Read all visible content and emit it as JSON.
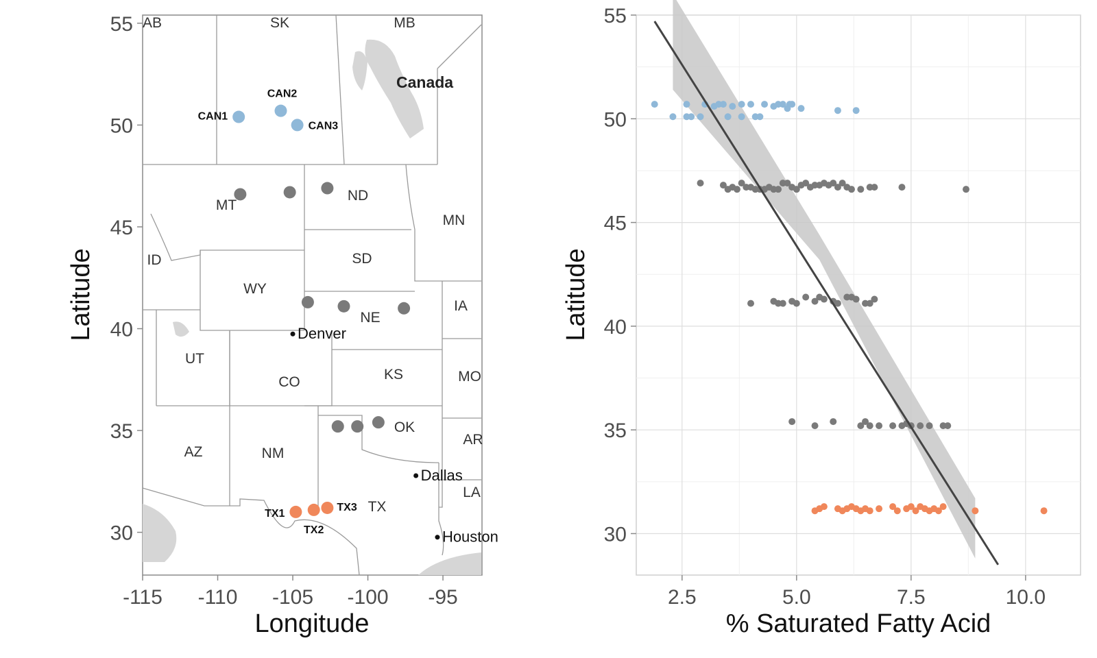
{
  "colors": {
    "canada": "#8fb8d8",
    "usa": "#7a7a7a",
    "texas": "#f0875a",
    "fit_line": "#444444",
    "confidence_band": "#c8c8c8",
    "water": "#d6d6d6",
    "border": "#9a9a9a"
  },
  "map": {
    "x_axis_label": "Longitude",
    "y_axis_label": "Latitude",
    "x_ticks": [
      "-115",
      "-110",
      "-105",
      "-100",
      "-95"
    ],
    "y_ticks": [
      "55",
      "50",
      "45",
      "40",
      "35",
      "30"
    ],
    "country_label": "Canada",
    "state_labels": [
      "AB",
      "SK",
      "MB",
      "MT",
      "ND",
      "MN",
      "ID",
      "SD",
      "WY",
      "IA",
      "NE",
      "UT",
      "KS",
      "MO",
      "CO",
      "OK",
      "AZ",
      "NM",
      "AR",
      "LA",
      "TX"
    ],
    "cities": [
      "Denver",
      "Dallas",
      "Houston"
    ],
    "sites": [
      {
        "label": "CAN1",
        "lon": -108.6,
        "lat": 50.4,
        "group": "canada"
      },
      {
        "label": "CAN2",
        "lon": -105.8,
        "lat": 50.7,
        "group": "canada"
      },
      {
        "label": "CAN3",
        "lon": -104.7,
        "lat": 50.0,
        "group": "canada"
      },
      {
        "label": "",
        "lon": -108.5,
        "lat": 46.6,
        "group": "usa"
      },
      {
        "label": "",
        "lon": -105.2,
        "lat": 46.7,
        "group": "usa"
      },
      {
        "label": "",
        "lon": -102.7,
        "lat": 46.9,
        "group": "usa"
      },
      {
        "label": "",
        "lon": -104.0,
        "lat": 41.3,
        "group": "usa"
      },
      {
        "label": "",
        "lon": -101.6,
        "lat": 41.1,
        "group": "usa"
      },
      {
        "label": "",
        "lon": -97.6,
        "lat": 41.0,
        "group": "usa"
      },
      {
        "label": "",
        "lon": -102.0,
        "lat": 35.2,
        "group": "usa"
      },
      {
        "label": "",
        "lon": -100.7,
        "lat": 35.2,
        "group": "usa"
      },
      {
        "label": "",
        "lon": -99.3,
        "lat": 35.4,
        "group": "usa"
      },
      {
        "label": "TX1",
        "lon": -104.8,
        "lat": 31.0,
        "group": "texas"
      },
      {
        "label": "TX2",
        "lon": -103.6,
        "lat": 31.1,
        "group": "texas"
      },
      {
        "label": "TX3",
        "lon": -102.7,
        "lat": 31.2,
        "group": "texas"
      }
    ]
  },
  "chart_data": {
    "type": "scatter",
    "xlabel": "% Saturated Fatty Acid",
    "ylabel": "Latitude",
    "xlim": [
      1.5,
      11.2
    ],
    "ylim": [
      28,
      55
    ],
    "x_ticks": [
      "2.5",
      "5.0",
      "7.5",
      "10.0"
    ],
    "y_ticks": [
      "55",
      "50",
      "45",
      "40",
      "35",
      "30"
    ],
    "grid": true,
    "series": [
      {
        "group": "canada",
        "points": [
          [
            1.9,
            50.7
          ],
          [
            2.3,
            50.1
          ],
          [
            2.6,
            50.7
          ],
          [
            2.6,
            50.1
          ],
          [
            2.7,
            50.1
          ],
          [
            2.9,
            50.1
          ],
          [
            3.0,
            50.7
          ],
          [
            3.2,
            50.6
          ],
          [
            3.3,
            50.7
          ],
          [
            3.4,
            50.7
          ],
          [
            3.5,
            50.1
          ],
          [
            3.6,
            50.6
          ],
          [
            3.8,
            50.7
          ],
          [
            3.8,
            50.1
          ],
          [
            4.0,
            50.7
          ],
          [
            4.1,
            50.1
          ],
          [
            4.2,
            50.1
          ],
          [
            4.3,
            50.7
          ],
          [
            4.5,
            50.6
          ],
          [
            4.6,
            50.7
          ],
          [
            4.7,
            50.7
          ],
          [
            4.8,
            50.5
          ],
          [
            4.85,
            50.7
          ],
          [
            4.9,
            50.7
          ],
          [
            5.1,
            50.5
          ],
          [
            5.9,
            50.4
          ],
          [
            6.3,
            50.4
          ]
        ]
      },
      {
        "group": "usa",
        "points": [
          [
            2.9,
            46.9
          ],
          [
            3.4,
            46.8
          ],
          [
            3.5,
            46.6
          ],
          [
            3.6,
            46.7
          ],
          [
            3.7,
            46.6
          ],
          [
            3.8,
            46.9
          ],
          [
            3.9,
            46.7
          ],
          [
            4.0,
            46.7
          ],
          [
            4.1,
            46.6
          ],
          [
            4.2,
            46.6
          ],
          [
            4.3,
            46.6
          ],
          [
            4.4,
            46.7
          ],
          [
            4.5,
            46.6
          ],
          [
            4.6,
            46.6
          ],
          [
            4.7,
            46.9
          ],
          [
            4.8,
            46.9
          ],
          [
            4.9,
            46.7
          ],
          [
            5.0,
            46.6
          ],
          [
            5.1,
            46.8
          ],
          [
            5.2,
            46.9
          ],
          [
            5.3,
            46.7
          ],
          [
            5.4,
            46.8
          ],
          [
            5.5,
            46.8
          ],
          [
            5.6,
            46.9
          ],
          [
            5.7,
            46.8
          ],
          [
            5.8,
            46.9
          ],
          [
            5.9,
            46.7
          ],
          [
            6.0,
            46.9
          ],
          [
            6.1,
            46.7
          ],
          [
            6.2,
            46.6
          ],
          [
            6.4,
            46.6
          ],
          [
            6.6,
            46.7
          ],
          [
            6.7,
            46.7
          ],
          [
            7.3,
            46.7
          ],
          [
            8.7,
            46.6
          ],
          [
            4.0,
            41.1
          ],
          [
            4.5,
            41.2
          ],
          [
            4.6,
            41.1
          ],
          [
            4.7,
            41.1
          ],
          [
            4.9,
            41.2
          ],
          [
            5.0,
            41.1
          ],
          [
            5.2,
            41.4
          ],
          [
            5.4,
            41.2
          ],
          [
            5.5,
            41.4
          ],
          [
            5.6,
            41.3
          ],
          [
            5.8,
            41.2
          ],
          [
            5.9,
            41.1
          ],
          [
            6.1,
            41.4
          ],
          [
            6.2,
            41.4
          ],
          [
            6.3,
            41.3
          ],
          [
            6.5,
            41.1
          ],
          [
            6.6,
            41.1
          ],
          [
            6.7,
            41.3
          ],
          [
            4.9,
            35.4
          ],
          [
            5.4,
            35.2
          ],
          [
            5.8,
            35.4
          ],
          [
            6.4,
            35.2
          ],
          [
            6.5,
            35.4
          ],
          [
            6.6,
            35.2
          ],
          [
            6.8,
            35.2
          ],
          [
            7.1,
            35.2
          ],
          [
            7.3,
            35.2
          ],
          [
            7.4,
            35.3
          ],
          [
            7.5,
            35.2
          ],
          [
            7.7,
            35.2
          ],
          [
            7.9,
            35.2
          ],
          [
            8.2,
            35.2
          ],
          [
            8.3,
            35.2
          ]
        ]
      },
      {
        "group": "texas",
        "points": [
          [
            5.4,
            31.1
          ],
          [
            5.5,
            31.2
          ],
          [
            5.6,
            31.3
          ],
          [
            5.9,
            31.2
          ],
          [
            6.0,
            31.1
          ],
          [
            6.1,
            31.2
          ],
          [
            6.2,
            31.3
          ],
          [
            6.3,
            31.2
          ],
          [
            6.4,
            31.1
          ],
          [
            6.5,
            31.2
          ],
          [
            6.6,
            31.1
          ],
          [
            6.8,
            31.2
          ],
          [
            7.1,
            31.3
          ],
          [
            7.2,
            31.1
          ],
          [
            7.4,
            31.2
          ],
          [
            7.5,
            31.3
          ],
          [
            7.6,
            31.1
          ],
          [
            7.7,
            31.3
          ],
          [
            7.8,
            31.2
          ],
          [
            7.9,
            31.1
          ],
          [
            8.0,
            31.2
          ],
          [
            8.1,
            31.1
          ],
          [
            8.2,
            31.3
          ],
          [
            8.9,
            31.1
          ],
          [
            10.4,
            31.1
          ]
        ]
      }
    ],
    "fit": {
      "x": [
        1.9,
        9.4
      ],
      "y": [
        54.7,
        28.5
      ]
    },
    "ribbon": [
      {
        "x": 2.3,
        "lo": 51.4,
        "hi": 56.0
      },
      {
        "x": 5.5,
        "lo": 43.2,
        "hi": 44.4
      },
      {
        "x": 8.9,
        "lo": 28.8,
        "hi": 31.7
      }
    ]
  }
}
